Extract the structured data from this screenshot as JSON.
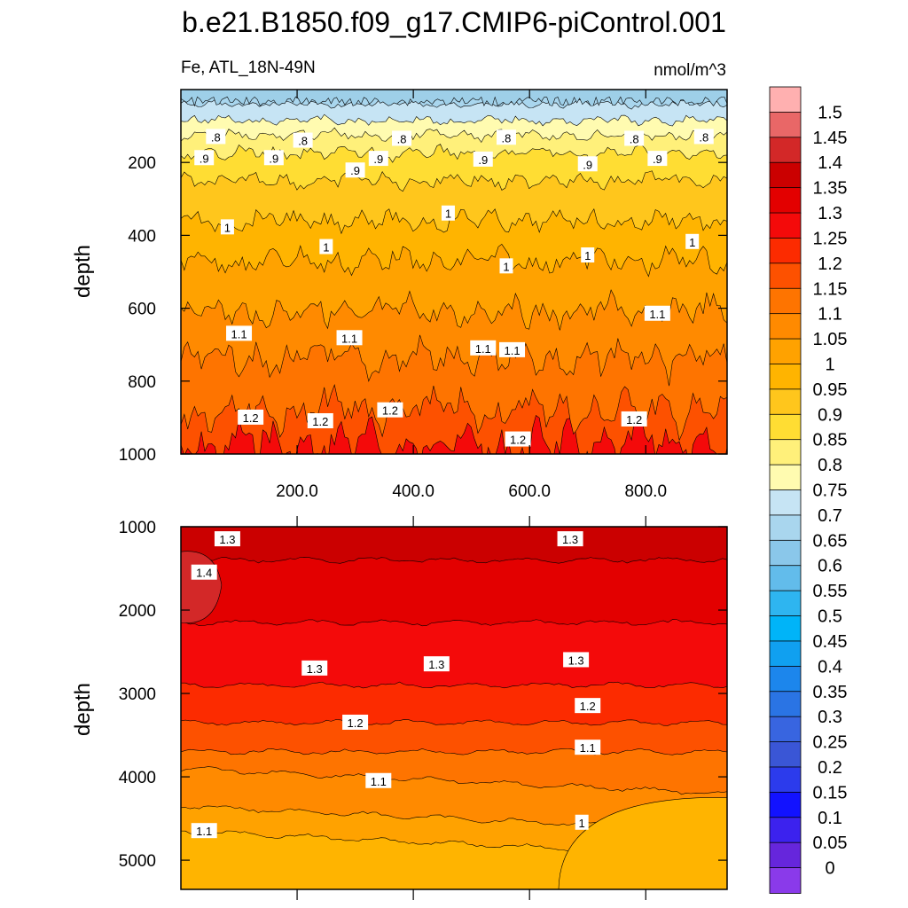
{
  "title": "b.e21.B1850.f09_g17.CMIP6-piControl.001",
  "variable_label": "Fe, ATL_18N-49N",
  "units_label": "nmol/m^3",
  "chart_data": [
    {
      "type": "contour",
      "panel": "upper",
      "ylabel": "depth",
      "xlabel": "",
      "x_range": [
        0,
        940
      ],
      "y_range": [
        0,
        1000
      ],
      "y_reversed": true,
      "x_ticks": [
        "200.0",
        "400.0",
        "600.0",
        "800.0"
      ],
      "x_tick_values": [
        200,
        400,
        600,
        800
      ],
      "y_ticks": [
        "200",
        "400",
        "600",
        "800",
        "1000"
      ],
      "y_tick_values": [
        200,
        400,
        600,
        800,
        1000
      ],
      "contour_levels_labeled": [
        ".8",
        ".9",
        "1",
        "1.1",
        "1.2"
      ],
      "level_depths": [
        {
          "level": 0.75,
          "depth": 40
        },
        {
          "level": 0.8,
          "depth": 85
        },
        {
          "level": 0.85,
          "depth": 125
        },
        {
          "level": 0.9,
          "depth": 175
        },
        {
          "level": 0.95,
          "depth": 250
        },
        {
          "level": 1.0,
          "depth": 360
        },
        {
          "level": 1.05,
          "depth": 470
        },
        {
          "level": 1.1,
          "depth": 610
        },
        {
          "level": 1.15,
          "depth": 740
        },
        {
          "level": 1.2,
          "depth": 880
        },
        {
          "level": 1.25,
          "depth": 975
        }
      ]
    },
    {
      "type": "contour",
      "panel": "lower",
      "ylabel": "depth",
      "xlabel": "",
      "x_range": [
        0,
        940
      ],
      "y_range": [
        1000,
        5350
      ],
      "y_reversed": true,
      "y_ticks": [
        "1000",
        "2000",
        "3000",
        "4000",
        "5000"
      ],
      "y_tick_values": [
        1000,
        2000,
        3000,
        4000,
        5000
      ],
      "contour_levels_labeled": [
        "1.4",
        "1.3",
        "1.2",
        "1.1",
        "1"
      ],
      "level_depths": [
        {
          "level": 1.35,
          "depth": 1400
        },
        {
          "level": 1.3,
          "depth": 2150
        },
        {
          "level": 1.25,
          "depth": 2900
        },
        {
          "level": 1.2,
          "depth": 3350
        },
        {
          "level": 1.15,
          "depth": 3700
        },
        {
          "level": 1.1,
          "depth": 4150
        },
        {
          "level": 1.05,
          "depth": 4600
        },
        {
          "level": 1.0,
          "depth": 4900
        }
      ]
    }
  ],
  "colorbar": {
    "labels": [
      "1.5",
      "1.45",
      "1.4",
      "1.35",
      "1.3",
      "1.25",
      "1.2",
      "1.15",
      "1.1",
      "1.05",
      "1",
      "0.95",
      "0.9",
      "0.85",
      "0.8",
      "0.75",
      "0.7",
      "0.65",
      "0.6",
      "0.55",
      "0.5",
      "0.45",
      "0.4",
      "0.35",
      "0.3",
      "0.25",
      "0.2",
      "0.15",
      "0.1",
      "0.05",
      "0"
    ],
    "colors": [
      "#ffb0b0",
      "#e96767",
      "#d32828",
      "#cb0000",
      "#e30000",
      "#f40a0a",
      "#fc2b00",
      "#fd5100",
      "#fe7400",
      "#ff8a00",
      "#ffa200",
      "#ffb400",
      "#ffc61c",
      "#ffdd33",
      "#fff07a",
      "#fffbb0",
      "#c6e4f4",
      "#a9d6ee",
      "#8ac7ea",
      "#62bceb",
      "#2eb5f0",
      "#00b4f8",
      "#10a0f0",
      "#1c86ec",
      "#2a74e4",
      "#3865e0",
      "#3a56d6",
      "#2c3bec",
      "#1212ff",
      "#3c22ee",
      "#6626dc",
      "#8a3aea"
    ]
  },
  "colors": {
    "upper_fill_top": "#9ecfe8",
    "frame": "#000000"
  }
}
